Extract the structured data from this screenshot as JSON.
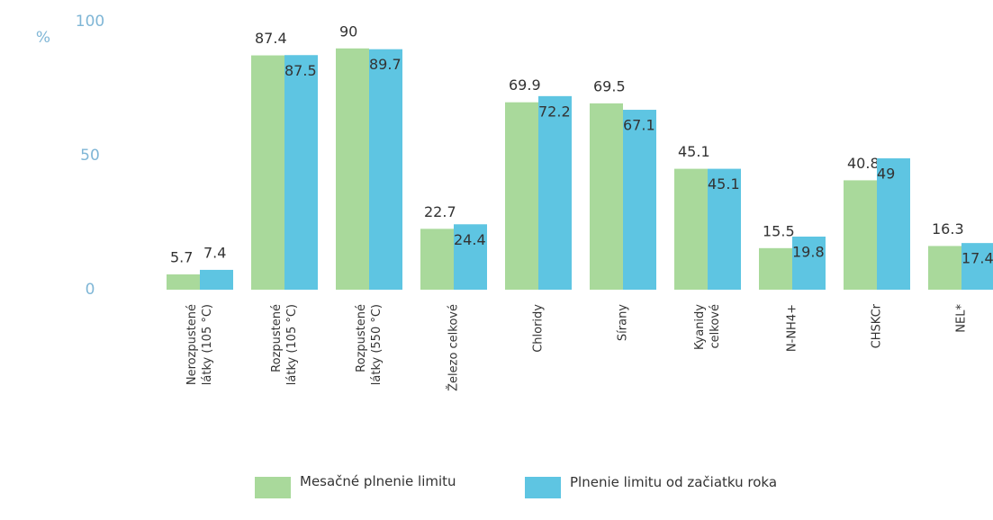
{
  "chart_data": {
    "type": "bar",
    "ylabel": "%",
    "categories": [
      [
        "Nerozpustené",
        "látky (105 °C)"
      ],
      [
        "Rozpustené",
        "látky (105 °C)"
      ],
      [
        "Rozpustené",
        "látky (550 °C)"
      ],
      [
        "Železo celkové"
      ],
      [
        "Chloridy"
      ],
      [
        "Sírany"
      ],
      [
        "Kyanidy",
        "celkové"
      ],
      [
        "N-NH4+"
      ],
      [
        "CHSKCr"
      ],
      [
        "NEL*"
      ]
    ],
    "series": [
      {
        "name": "Mesačné plnenie limitu",
        "color": "#a9d99b",
        "values": [
          5.7,
          87.4,
          90,
          22.7,
          69.9,
          69.5,
          45.1,
          15.5,
          40.8,
          16.3
        ]
      },
      {
        "name": "Plnenie limitu od začiatku roka",
        "color": "#5ec5e2",
        "values": [
          7.4,
          87.5,
          89.7,
          24.4,
          72.2,
          67.1,
          45.1,
          19.8,
          49,
          17.4
        ]
      }
    ],
    "ylim": [
      0,
      100
    ],
    "yticks": [
      0,
      50,
      100
    ]
  }
}
